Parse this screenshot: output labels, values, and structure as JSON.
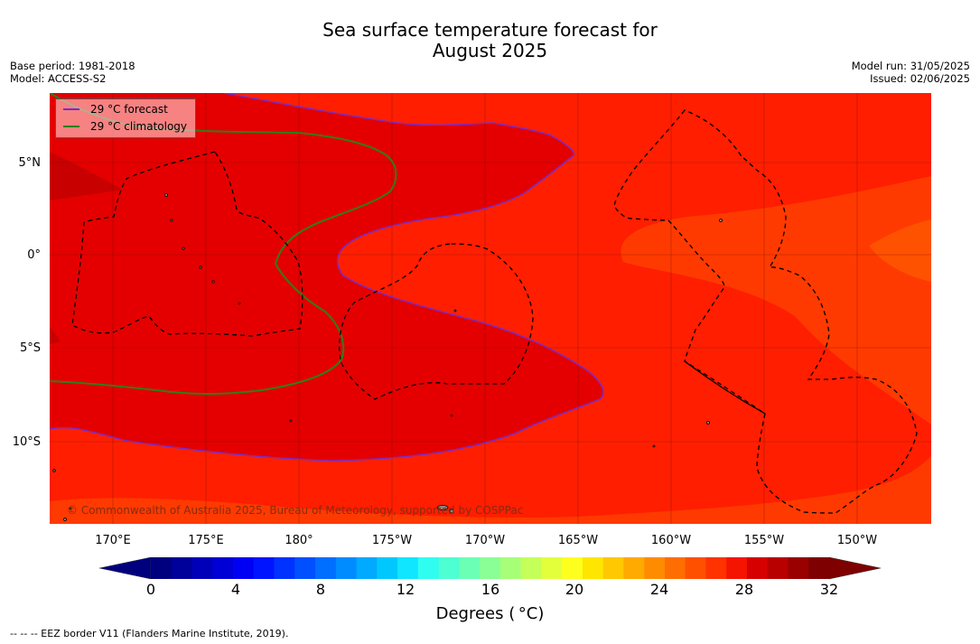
{
  "title_line1": "Sea surface temperature forecast for",
  "title_line2": "August 2025",
  "base_period": "Base period: 1981-2018",
  "model": "Model: ACCESS-S2",
  "model_run": "Model run: 31/05/2025",
  "issued": "Issued: 02/06/2025",
  "legend": {
    "forecast_label": "29 °C  forecast",
    "forecast_color": "#7b2cc4",
    "climatology_label": "29 °C  climatology",
    "climatology_color": "#2e7d1e"
  },
  "lat_labels": [
    "5°N",
    "0°",
    "5°S",
    "10°S"
  ],
  "lon_labels": [
    "170°E",
    "175°E",
    "180°",
    "175°W",
    "170°W",
    "165°W",
    "160°W",
    "155°W",
    "150°W"
  ],
  "copyright": "© Commonwealth of Australia 2025, Bureau of Meteorology, supported by COSPPac",
  "colorbar": {
    "ticks": [
      "0",
      "4",
      "8",
      "12",
      "16",
      "20",
      "24",
      "28",
      "32"
    ],
    "label": "Degrees ( °C)",
    "colors": [
      "#00007f",
      "#00009a",
      "#0000b8",
      "#0000d6",
      "#0000f5",
      "#0014ff",
      "#0032ff",
      "#0050ff",
      "#006eff",
      "#008cff",
      "#00aaff",
      "#00c8ff",
      "#10e6ff",
      "#2ffdf0",
      "#4dffd2",
      "#6bffb4",
      "#89ff96",
      "#a7ff78",
      "#c5ff5a",
      "#e3ff3c",
      "#ffff1e",
      "#ffe600",
      "#ffc800",
      "#ffaa00",
      "#ff8c00",
      "#ff6e00",
      "#ff5000",
      "#ff3200",
      "#f51400",
      "#d60000",
      "#b80000",
      "#9a0000",
      "#7f0000"
    ],
    "extend_low_color": "#00007f",
    "extend_high_color": "#7f0000"
  },
  "footnote": "--  --  -- EEZ border V11 (Flanders Marine Institute, 2019).",
  "map_colors": {
    "level_27": "#ff3a00",
    "level_28": "#ff1e00",
    "level_29": "#e40000",
    "level_30": "#c80000",
    "level_26": "#ff5200"
  }
}
